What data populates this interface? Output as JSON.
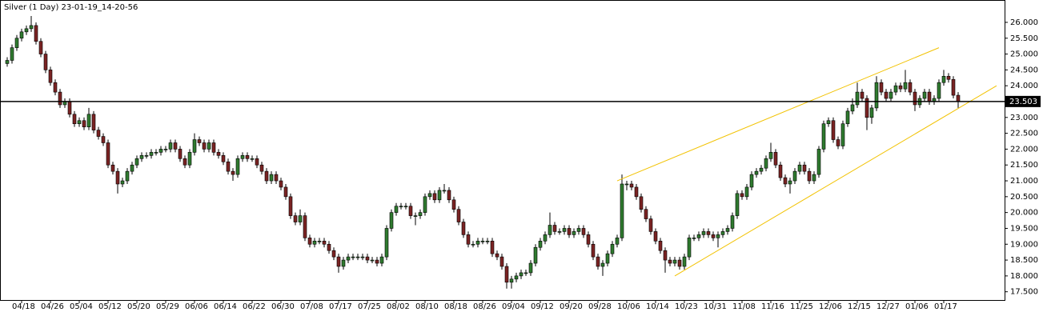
{
  "chart_data": {
    "type": "candlestick",
    "title": "Silver (1 Day) 23-01-19_14-20-56",
    "categories": [
      null,
      null,
      null,
      "04/18",
      null,
      null,
      null,
      null,
      null,
      "04/26",
      null,
      null,
      null,
      null,
      null,
      "05/04",
      null,
      null,
      null,
      null,
      null,
      "05/12",
      null,
      null,
      null,
      null,
      null,
      "05/20",
      null,
      null,
      null,
      null,
      null,
      "05/29",
      null,
      null,
      null,
      null,
      null,
      "06/06",
      null,
      null,
      null,
      null,
      null,
      "06/14",
      null,
      null,
      null,
      null,
      null,
      "06/22",
      null,
      null,
      null,
      null,
      null,
      "06/30",
      null,
      null,
      null,
      null,
      null,
      "07/08",
      null,
      null,
      null,
      null,
      null,
      "07/17",
      null,
      null,
      null,
      null,
      null,
      "07/25",
      null,
      null,
      null,
      null,
      null,
      "08/02",
      null,
      null,
      null,
      null,
      null,
      "08/10",
      null,
      null,
      null,
      null,
      null,
      "08/18",
      null,
      null,
      null,
      null,
      null,
      "08/26",
      null,
      null,
      null,
      null,
      null,
      "09/04",
      null,
      null,
      null,
      null,
      null,
      "09/12",
      null,
      null,
      null,
      null,
      null,
      "09/20",
      null,
      null,
      null,
      null,
      null,
      "09/28",
      null,
      null,
      null,
      null,
      null,
      "10/06",
      null,
      null,
      null,
      null,
      null,
      "10/14",
      null,
      null,
      null,
      null,
      null,
      "10/23",
      null,
      null,
      null,
      null,
      null,
      "10/31",
      null,
      null,
      null,
      null,
      null,
      "11/08",
      null,
      null,
      null,
      null,
      null,
      "11/16",
      null,
      null,
      null,
      null,
      null,
      "11/25",
      null,
      null,
      null,
      null,
      null,
      "12/06",
      null,
      null,
      null,
      null,
      null,
      "12/15",
      null,
      null,
      null,
      null,
      null,
      "12/27",
      null,
      null,
      null,
      null,
      null,
      "01/06",
      null,
      null,
      null,
      null,
      null,
      "01/17",
      null,
      null,
      null
    ],
    "open": [
      24.7,
      24.8,
      25.2,
      25.5,
      25.7,
      25.8,
      25.9,
      25.4,
      25.0,
      24.5,
      24.1,
      23.8,
      23.4,
      23.5,
      23.1,
      22.8,
      22.9,
      22.7,
      23.1,
      22.6,
      22.4,
      22.2,
      21.5,
      21.3,
      20.9,
      21.0,
      21.3,
      21.5,
      21.7,
      21.8,
      21.8,
      21.9,
      21.9,
      22.0,
      22.0,
      22.2,
      22.0,
      21.7,
      21.5,
      21.9,
      22.3,
      22.2,
      22.0,
      22.2,
      21.9,
      21.8,
      21.6,
      21.3,
      21.2,
      21.7,
      21.8,
      21.7,
      21.7,
      21.5,
      21.3,
      21.0,
      21.2,
      21.0,
      20.8,
      20.5,
      19.9,
      19.7,
      19.9,
      19.2,
      19.0,
      19.1,
      19.1,
      19.0,
      18.8,
      18.6,
      18.3,
      18.5,
      18.6,
      18.6,
      18.6,
      18.6,
      18.5,
      18.5,
      18.4,
      18.6,
      19.5,
      20.0,
      20.2,
      20.2,
      20.2,
      19.9,
      19.9,
      20.0,
      20.5,
      20.6,
      20.4,
      20.7,
      20.7,
      20.4,
      20.1,
      19.7,
      19.3,
      19.0,
      19.0,
      19.1,
      19.1,
      19.1,
      18.7,
      18.6,
      18.3,
      17.8,
      17.9,
      18.0,
      18.1,
      18.1,
      18.4,
      18.9,
      19.1,
      19.3,
      19.6,
      19.4,
      19.4,
      19.5,
      19.3,
      19.4,
      19.5,
      19.3,
      19.0,
      18.6,
      18.3,
      18.4,
      18.7,
      19.0,
      19.2,
      20.9,
      20.9,
      20.8,
      20.5,
      20.1,
      19.8,
      19.4,
      19.1,
      18.8,
      18.5,
      18.4,
      18.5,
      18.3,
      18.6,
      19.2,
      19.2,
      19.3,
      19.4,
      19.3,
      19.2,
      19.3,
      19.4,
      19.5,
      19.9,
      20.6,
      20.5,
      20.8,
      21.2,
      21.3,
      21.4,
      21.7,
      21.9,
      21.5,
      21.1,
      20.9,
      21.0,
      21.3,
      21.5,
      21.3,
      21.0,
      21.2,
      22.0,
      22.8,
      22.9,
      22.3,
      22.1,
      22.8,
      23.2,
      23.4,
      23.8,
      23.6,
      23.0,
      23.3,
      24.1,
      23.8,
      23.6,
      23.8,
      24.0,
      23.9,
      24.1,
      23.8,
      23.4,
      23.6,
      23.8,
      23.5,
      23.6,
      24.1,
      24.3,
      24.2,
      23.7
    ],
    "high": [
      24.9,
      25.3,
      25.6,
      25.8,
      25.9,
      26.2,
      26.0,
      25.5,
      25.1,
      24.6,
      24.2,
      23.9,
      23.6,
      23.6,
      23.2,
      23.0,
      23.0,
      23.3,
      23.2,
      22.7,
      22.5,
      22.3,
      21.6,
      21.4,
      21.1,
      21.4,
      21.6,
      21.8,
      21.9,
      21.9,
      22.0,
      22.0,
      22.1,
      22.1,
      22.3,
      22.3,
      22.1,
      21.8,
      22.0,
      22.5,
      22.4,
      22.3,
      22.3,
      22.3,
      22.0,
      21.9,
      21.7,
      21.4,
      21.8,
      21.9,
      21.9,
      21.8,
      21.8,
      21.6,
      21.4,
      21.3,
      21.3,
      21.1,
      20.9,
      20.6,
      20.0,
      20.1,
      20.0,
      19.3,
      19.2,
      19.2,
      19.2,
      19.1,
      18.9,
      18.7,
      18.6,
      18.7,
      18.7,
      18.7,
      18.7,
      18.7,
      18.6,
      18.6,
      18.7,
      19.6,
      20.1,
      20.3,
      20.3,
      20.3,
      20.3,
      20.0,
      20.1,
      20.6,
      20.7,
      20.7,
      20.8,
      20.9,
      20.8,
      20.5,
      20.2,
      19.8,
      19.4,
      19.1,
      19.2,
      19.2,
      19.2,
      19.2,
      18.8,
      18.7,
      18.4,
      18.0,
      18.1,
      18.2,
      18.2,
      18.5,
      19.0,
      19.2,
      19.4,
      20.0,
      19.7,
      19.5,
      19.6,
      19.6,
      19.5,
      19.6,
      19.6,
      19.4,
      19.1,
      18.7,
      18.5,
      18.8,
      19.1,
      19.3,
      21.2,
      21.0,
      21.0,
      20.9,
      20.6,
      20.2,
      19.9,
      19.5,
      19.2,
      18.9,
      18.6,
      18.6,
      18.6,
      18.7,
      19.3,
      19.3,
      19.4,
      19.5,
      19.5,
      19.4,
      19.4,
      19.5,
      19.6,
      20.0,
      20.7,
      20.7,
      20.9,
      21.3,
      21.4,
      21.5,
      21.8,
      22.2,
      22.0,
      21.6,
      21.2,
      21.1,
      21.4,
      21.6,
      21.6,
      21.4,
      21.3,
      22.1,
      22.9,
      23.0,
      23.0,
      22.4,
      22.9,
      23.3,
      23.6,
      24.1,
      23.9,
      23.7,
      23.4,
      24.3,
      24.2,
      23.9,
      23.9,
      24.1,
      24.1,
      24.5,
      24.2,
      23.9,
      23.7,
      23.9,
      23.9,
      23.7,
      24.2,
      24.5,
      24.4,
      24.3,
      23.8
    ],
    "low": [
      24.6,
      24.7,
      25.1,
      25.4,
      25.6,
      25.7,
      25.3,
      24.9,
      24.4,
      24.0,
      23.7,
      23.3,
      23.3,
      23.0,
      22.7,
      22.7,
      22.6,
      22.6,
      22.5,
      22.3,
      22.1,
      21.4,
      21.2,
      20.6,
      20.8,
      20.9,
      21.2,
      21.4,
      21.6,
      21.7,
      21.7,
      21.8,
      21.8,
      21.9,
      21.9,
      21.9,
      21.6,
      21.4,
      21.4,
      21.8,
      22.1,
      21.9,
      21.9,
      21.8,
      21.7,
      21.5,
      21.2,
      21.0,
      21.1,
      21.6,
      21.6,
      21.6,
      21.4,
      21.2,
      20.9,
      20.9,
      20.9,
      20.7,
      20.4,
      19.8,
      19.6,
      19.6,
      19.1,
      18.9,
      18.9,
      19.0,
      18.9,
      18.7,
      18.5,
      18.1,
      18.2,
      18.4,
      18.5,
      18.5,
      18.5,
      18.4,
      18.4,
      18.3,
      18.3,
      18.5,
      19.4,
      19.9,
      20.1,
      20.1,
      19.8,
      19.6,
      19.8,
      19.9,
      20.4,
      20.3,
      20.3,
      20.6,
      20.3,
      20.0,
      19.6,
      19.2,
      18.9,
      18.9,
      18.9,
      19.0,
      19.0,
      18.6,
      18.5,
      18.2,
      17.6,
      17.6,
      17.8,
      17.9,
      18.0,
      18.0,
      18.3,
      18.8,
      19.0,
      19.2,
      19.3,
      19.3,
      19.3,
      19.2,
      19.2,
      19.3,
      19.2,
      18.9,
      18.5,
      18.2,
      18.0,
      18.3,
      18.6,
      18.9,
      19.1,
      20.7,
      20.7,
      20.4,
      20.0,
      19.7,
      19.3,
      19.0,
      18.7,
      18.1,
      18.3,
      18.3,
      18.2,
      18.2,
      18.5,
      19.1,
      19.1,
      19.2,
      19.2,
      19.1,
      18.9,
      19.2,
      19.3,
      19.4,
      19.8,
      20.4,
      20.4,
      20.7,
      21.1,
      21.2,
      21.3,
      21.6,
      21.4,
      21.0,
      20.8,
      20.6,
      20.9,
      21.2,
      21.2,
      20.9,
      20.9,
      21.1,
      21.9,
      22.7,
      22.2,
      22.0,
      22.0,
      22.7,
      23.1,
      23.3,
      23.5,
      22.6,
      22.8,
      23.2,
      23.7,
      23.5,
      23.5,
      23.7,
      23.8,
      23.8,
      23.7,
      23.2,
      23.3,
      23.5,
      23.4,
      23.4,
      23.5,
      24.0,
      24.1,
      23.6,
      23.3
    ],
    "close": [
      24.8,
      25.2,
      25.5,
      25.7,
      25.8,
      25.9,
      25.4,
      25.0,
      24.5,
      24.1,
      23.8,
      23.4,
      23.5,
      23.1,
      22.8,
      22.9,
      22.7,
      23.1,
      22.6,
      22.4,
      22.2,
      21.5,
      21.3,
      20.9,
      21.0,
      21.3,
      21.5,
      21.7,
      21.8,
      21.8,
      21.9,
      21.9,
      22.0,
      22.0,
      22.2,
      22.0,
      21.7,
      21.5,
      21.9,
      22.3,
      22.2,
      22.0,
      22.2,
      21.9,
      21.8,
      21.6,
      21.3,
      21.2,
      21.7,
      21.8,
      21.7,
      21.7,
      21.5,
      21.3,
      21.0,
      21.2,
      21.0,
      20.8,
      20.5,
      19.9,
      19.7,
      19.9,
      19.2,
      19.0,
      19.1,
      19.1,
      19.0,
      18.8,
      18.6,
      18.3,
      18.5,
      18.6,
      18.6,
      18.6,
      18.6,
      18.5,
      18.5,
      18.4,
      18.6,
      19.5,
      20.0,
      20.2,
      20.2,
      20.2,
      19.9,
      19.9,
      20.0,
      20.5,
      20.6,
      20.4,
      20.7,
      20.7,
      20.4,
      20.1,
      19.7,
      19.3,
      19.0,
      19.0,
      19.1,
      19.1,
      19.1,
      18.7,
      18.6,
      18.3,
      17.8,
      17.9,
      18.0,
      18.1,
      18.1,
      18.4,
      18.9,
      19.1,
      19.3,
      19.6,
      19.4,
      19.4,
      19.5,
      19.3,
      19.4,
      19.5,
      19.3,
      19.0,
      18.6,
      18.3,
      18.4,
      18.7,
      19.0,
      19.2,
      20.9,
      20.9,
      20.8,
      20.5,
      20.1,
      19.8,
      19.4,
      19.1,
      18.8,
      18.5,
      18.4,
      18.5,
      18.3,
      18.6,
      19.2,
      19.2,
      19.3,
      19.4,
      19.3,
      19.2,
      19.3,
      19.4,
      19.5,
      19.9,
      20.6,
      20.5,
      20.8,
      21.2,
      21.3,
      21.4,
      21.7,
      21.9,
      21.5,
      21.1,
      20.9,
      21.0,
      21.3,
      21.5,
      21.3,
      21.0,
      21.2,
      22.0,
      22.8,
      22.9,
      22.3,
      22.1,
      22.8,
      23.2,
      23.4,
      23.8,
      23.6,
      23.0,
      23.3,
      24.1,
      23.8,
      23.6,
      23.8,
      24.0,
      23.9,
      24.1,
      23.8,
      23.4,
      23.6,
      23.8,
      23.5,
      23.6,
      24.1,
      24.3,
      24.2,
      23.7,
      23.5
    ],
    "up_color": "#2f7a2f",
    "down_color": "#7a2323",
    "ylim": [
      17.24,
      26.68
    ],
    "yticks": [
      {
        "value": 26,
        "label": "26.000"
      },
      {
        "value": 25.5,
        "label": "25.500"
      },
      {
        "value": 25,
        "label": "25.000"
      },
      {
        "value": 24.5,
        "label": "24.500"
      },
      {
        "value": 24,
        "label": "24.000"
      },
      {
        "value": 23.5,
        "label": "23.500"
      },
      {
        "value": 23,
        "label": "23.000"
      },
      {
        "value": 22.5,
        "label": "22.500"
      },
      {
        "value": 22,
        "label": "22.000"
      },
      {
        "value": 21.5,
        "label": "21.500"
      },
      {
        "value": 21,
        "label": "21.000"
      },
      {
        "value": 20.5,
        "label": "20.500"
      },
      {
        "value": 20,
        "label": "20.000"
      },
      {
        "value": 19.5,
        "label": "19.500"
      },
      {
        "value": 19,
        "label": "19.000"
      },
      {
        "value": 18.5,
        "label": "18.500"
      },
      {
        "value": 18,
        "label": "18.000"
      },
      {
        "value": 17.5,
        "label": "17.500"
      }
    ],
    "last_price": {
      "value": 23.503,
      "label": "23.503"
    },
    "trendlines": [
      {
        "color": "#f2c200",
        "from": [
          127,
          21.0
        ],
        "to": [
          194,
          25.2
        ]
      },
      {
        "color": "#f2c200",
        "from": [
          139,
          18.0
        ],
        "to": [
          206,
          24.0
        ]
      }
    ]
  }
}
